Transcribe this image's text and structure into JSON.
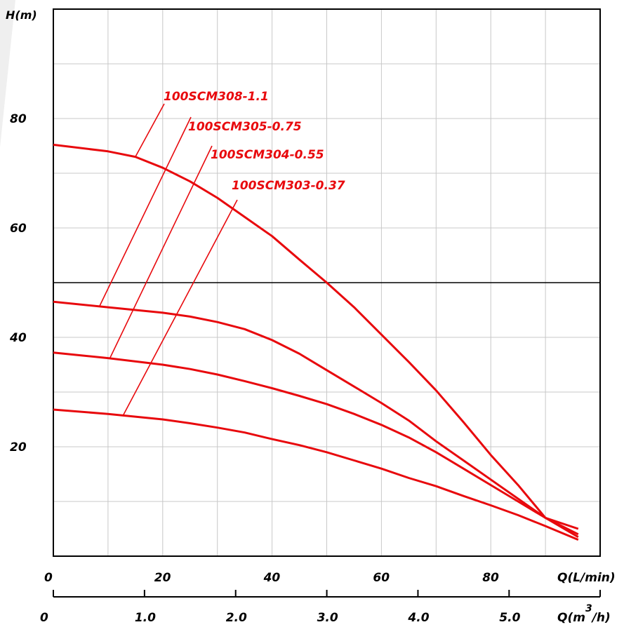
{
  "chart_data": {
    "type": "line",
    "ylabel": "H(m)",
    "xlabel": "Q(L/min)",
    "x2label_base": "Q(m",
    "x2label_sup": "3",
    "x2label_end": "/h)",
    "xlim": [
      0,
      100
    ],
    "ylim": [
      0,
      100
    ],
    "x_ticks": [
      0,
      20,
      40,
      60,
      80
    ],
    "x_tick_labels": [
      "0",
      "20",
      "40",
      "60",
      "80"
    ],
    "y_ticks": [
      20,
      40,
      60,
      80
    ],
    "y_tick_labels": [
      "20",
      "40",
      "60",
      "80"
    ],
    "x2_ticks": [
      0,
      1.0,
      2.0,
      3.0,
      4.0,
      5.0
    ],
    "x2_tick_labels": [
      "0",
      "1.0",
      "2.0",
      "3.0",
      "4.0",
      "5.0"
    ],
    "x2_scale_lpm_per_unit": 16.67,
    "grid_x": [
      10,
      20,
      30,
      40,
      50,
      60,
      70,
      80,
      90
    ],
    "grid_y": [
      10,
      20,
      30,
      40,
      60,
      70,
      80,
      90
    ],
    "highlight_y": 50,
    "line_color": "#e8090d",
    "grid_color": "#c8c8c8",
    "series": [
      {
        "name": "100SCM308-1.1",
        "x": [
          0,
          10,
          15,
          20,
          25,
          30,
          35,
          40,
          45,
          50,
          55,
          60,
          65,
          70,
          75,
          80,
          85,
          90,
          96
        ],
        "y": [
          75.2,
          74,
          73,
          71,
          68.5,
          65.5,
          62,
          58.5,
          54.2,
          50,
          45.5,
          40.5,
          35.5,
          30.3,
          24.5,
          18.5,
          13,
          7,
          5
        ]
      },
      {
        "name": "100SCM305-0.75",
        "x": [
          0,
          10,
          20,
          25,
          30,
          35,
          40,
          45,
          50,
          55,
          60,
          65,
          70,
          75,
          80,
          85,
          90,
          96
        ],
        "y": [
          46.5,
          45.5,
          44.5,
          43.8,
          42.8,
          41.5,
          39.5,
          37,
          34,
          31,
          28,
          24.8,
          21,
          17.5,
          14,
          10.5,
          7,
          4
        ]
      },
      {
        "name": "100SCM304-0.55",
        "x": [
          0,
          10,
          20,
          25,
          30,
          35,
          40,
          45,
          50,
          55,
          60,
          65,
          70,
          75,
          80,
          85,
          90,
          96
        ],
        "y": [
          37.2,
          36.2,
          35,
          34.2,
          33.2,
          32,
          30.7,
          29.3,
          27.8,
          26,
          24,
          21.7,
          19,
          16,
          13,
          10,
          7,
          3.5
        ]
      },
      {
        "name": "100SCM303-0.37",
        "x": [
          0,
          10,
          20,
          25,
          30,
          35,
          40,
          45,
          50,
          55,
          60,
          65,
          70,
          75,
          80,
          85,
          90,
          96
        ],
        "y": [
          26.8,
          26,
          25,
          24.3,
          23.5,
          22.6,
          21.4,
          20.3,
          19,
          17.5,
          16,
          14.3,
          12.8,
          11,
          9.3,
          7.5,
          5.5,
          3
        ]
      }
    ],
    "annotations": [
      {
        "label": "100SCM308-1.1",
        "leader_to": [
          15.0,
          73.0
        ]
      },
      {
        "label": "100SCM305-0.75",
        "leader_to": [
          8.5,
          45.8
        ]
      },
      {
        "label": "100SCM304-0.55",
        "leader_to": [
          10.3,
          36.1
        ]
      },
      {
        "label": "100SCM303-0.37",
        "leader_to": [
          12.8,
          25.8
        ]
      }
    ]
  }
}
